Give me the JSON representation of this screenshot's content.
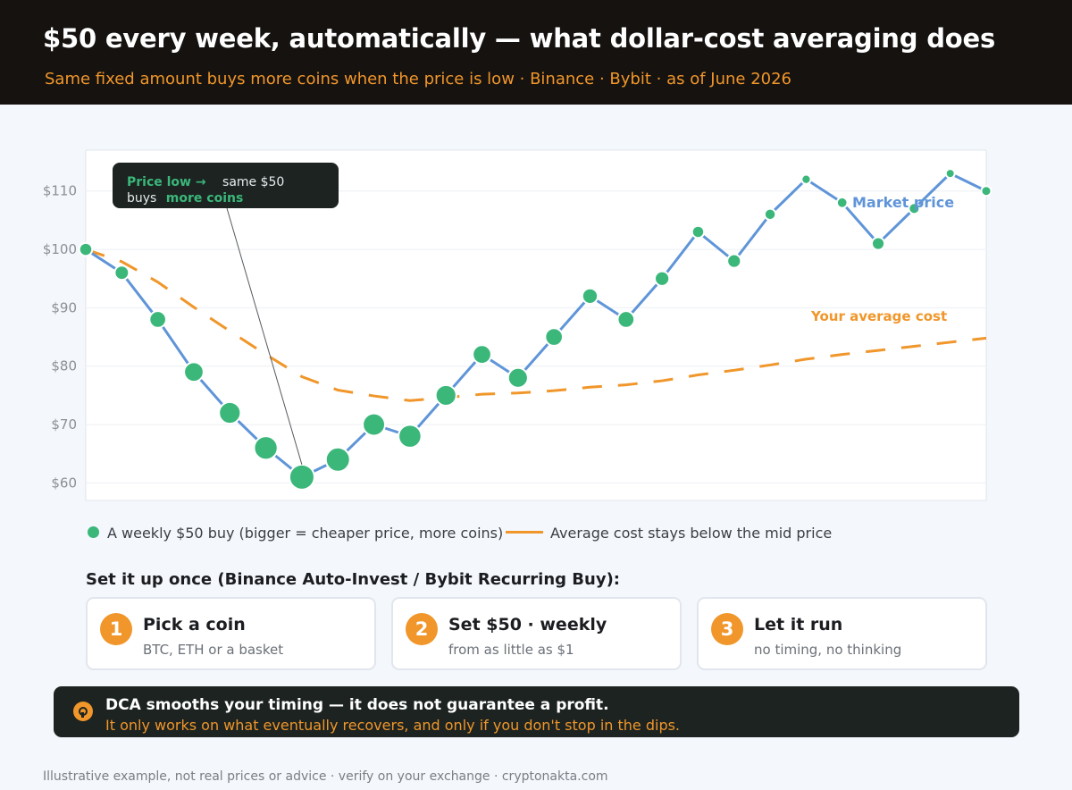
{
  "header": {
    "title": "$50 every week, automatically — what dollar-cost averaging does",
    "subtitle": "Same fixed amount buys more coins when the price is low · Binance · Bybit · as of June 2026"
  },
  "chart_data": {
    "type": "line",
    "x": [
      1,
      2,
      3,
      4,
      5,
      6,
      7,
      8,
      9,
      10,
      11,
      12,
      13,
      14,
      15,
      16,
      17,
      18,
      19,
      20,
      21,
      22,
      23,
      24,
      25,
      26
    ],
    "y_ticks": [
      "$60",
      "$70",
      "$80",
      "$90",
      "$100",
      "$110"
    ],
    "ylim": [
      57,
      117
    ],
    "grid": true,
    "series": [
      {
        "name": "Market price",
        "color": "#5f95d8",
        "values": [
          100,
          96,
          88,
          79,
          72,
          66,
          61,
          64,
          70,
          68,
          75,
          82,
          78,
          85,
          92,
          88,
          95,
          103,
          98,
          106,
          112,
          108,
          101,
          107,
          113,
          110
        ]
      },
      {
        "name": "Your average cost",
        "color": "#f0962a",
        "style": "dashed",
        "values": [
          100,
          97.9,
          94.4,
          90.1,
          86.0,
          82.0,
          78.2,
          75.9,
          74.9,
          74.1,
          74.6,
          75.2,
          75.4,
          75.8,
          76.4,
          76.8,
          77.5,
          78.5,
          79.3,
          80.2,
          81.2,
          82.0,
          82.7,
          83.4,
          84.1,
          84.8
        ]
      }
    ],
    "annotation": {
      "line1_a": "Price low →",
      "line1_b": "same $50",
      "line2_a": "buys",
      "line2_b": "more coins",
      "points_to_x": 7
    }
  },
  "legend": {
    "buy_label": "A weekly $50 buy (bigger = cheaper price, more coins)",
    "avg_label": "Average cost stays below the mid price"
  },
  "setup": {
    "title": "Set it up once (Binance Auto-Invest / Bybit Recurring Buy):",
    "steps": [
      {
        "num": "1",
        "title": "Pick a coin",
        "desc": "BTC, ETH or a basket"
      },
      {
        "num": "2",
        "title": "Set $50 · weekly",
        "desc": "from as little as $1"
      },
      {
        "num": "3",
        "title": "Let it run",
        "desc": "no timing, no thinking"
      }
    ]
  },
  "warning": {
    "icon": "lightbulb-icon",
    "title": "DCA smooths your timing — it does not guarantee a profit.",
    "subtitle": "It only works on what eventually recovers, and only if you don't stop in the dips."
  },
  "footer": "Illustrative example, not real prices or advice · verify on your exchange · cryptonakta.com",
  "colors": {
    "accent": "#f0962a",
    "buy_dot": "#3bb77a",
    "price_line": "#5f95d8",
    "header_bg": "#151210"
  }
}
